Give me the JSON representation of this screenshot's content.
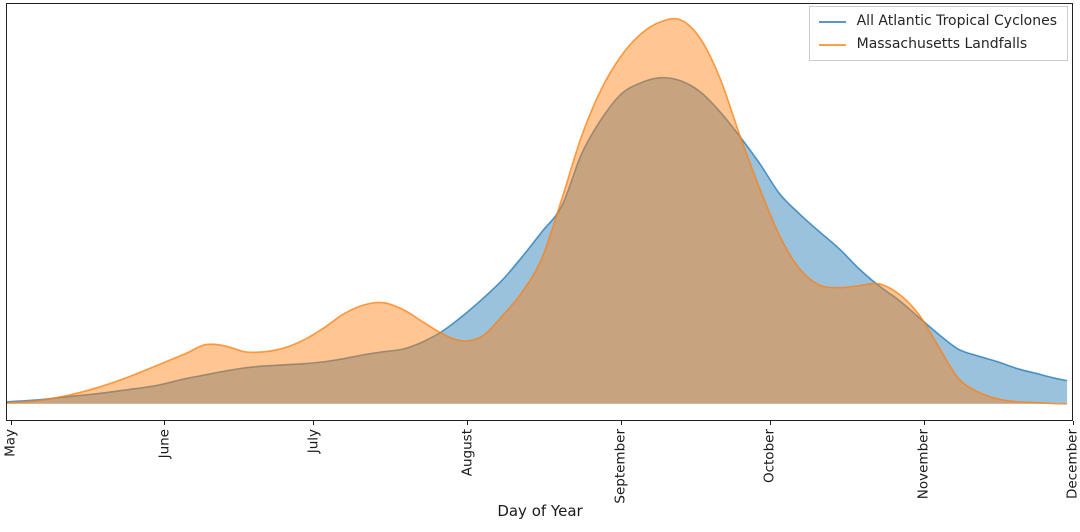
{
  "figure": {
    "background": "#ffffff",
    "spine_color": "#222222",
    "text_color": "#1a1a1a"
  },
  "legend": {
    "position": "upper right",
    "border_color": "#cccccc",
    "items": [
      {
        "label": "All Atlantic Tropical Cyclones",
        "color": "#1f77b4"
      },
      {
        "label": "Massachusetts Landfalls",
        "color": "#ff7f0e"
      }
    ]
  },
  "chart_data": {
    "type": "area",
    "subtype": "kde-density",
    "title": "",
    "xlabel": "Day of Year",
    "ylabel": "",
    "grid": false,
    "legend_position": "upper right",
    "xlim": [
      120,
      335
    ],
    "ylim": [
      -0.042,
      1.036
    ],
    "y_axis_ticks": "none",
    "x_ticks": [
      {
        "label": "May",
        "day": 121
      },
      {
        "label": "June",
        "day": 152
      },
      {
        "label": "July",
        "day": 182
      },
      {
        "label": "August",
        "day": 213
      },
      {
        "label": "September",
        "day": 244
      },
      {
        "label": "October",
        "day": 274
      },
      {
        "label": "November",
        "day": 305
      },
      {
        "label": "December",
        "day": 335
      }
    ],
    "x": [
      120,
      126,
      132,
      138,
      144,
      150,
      156,
      160,
      164,
      168,
      172,
      176,
      180,
      184,
      188,
      192,
      196,
      200,
      204,
      208,
      212,
      216,
      220,
      224,
      228,
      232,
      236,
      240,
      244,
      248,
      252,
      256,
      260,
      264,
      268,
      272,
      276,
      280,
      284,
      288,
      292,
      296,
      300,
      304,
      308,
      312,
      316,
      320,
      324,
      328,
      332,
      334
    ],
    "series": [
      {
        "name": "All Atlantic Tropical Cyclones",
        "color": "#1f77b4",
        "fill_opacity": 0.45,
        "line_opacity": 0.75,
        "values": [
          0.005,
          0.01,
          0.018,
          0.026,
          0.036,
          0.047,
          0.065,
          0.075,
          0.085,
          0.093,
          0.098,
          0.101,
          0.104,
          0.109,
          0.117,
          0.127,
          0.135,
          0.142,
          0.161,
          0.189,
          0.228,
          0.272,
          0.321,
          0.381,
          0.446,
          0.513,
          0.648,
          0.738,
          0.803,
          0.832,
          0.845,
          0.837,
          0.808,
          0.756,
          0.692,
          0.622,
          0.544,
          0.492,
          0.446,
          0.402,
          0.35,
          0.306,
          0.269,
          0.225,
          0.181,
          0.142,
          0.124,
          0.109,
          0.091,
          0.078,
          0.065,
          0.06
        ]
      },
      {
        "name": "Massachusetts Landfalls",
        "color": "#ff7f0e",
        "fill_opacity": 0.45,
        "line_opacity": 0.75,
        "values": [
          0.003,
          0.008,
          0.021,
          0.041,
          0.067,
          0.098,
          0.13,
          0.153,
          0.15,
          0.135,
          0.135,
          0.145,
          0.166,
          0.197,
          0.233,
          0.256,
          0.262,
          0.244,
          0.212,
          0.181,
          0.163,
          0.176,
          0.228,
          0.29,
          0.378,
          0.531,
          0.694,
          0.816,
          0.902,
          0.959,
          0.99,
          0.995,
          0.946,
          0.842,
          0.694,
          0.557,
          0.435,
          0.35,
          0.308,
          0.301,
          0.306,
          0.311,
          0.285,
          0.233,
          0.15,
          0.067,
          0.031,
          0.013,
          0.005,
          0.003,
          0.0,
          0.0
        ]
      }
    ]
  }
}
